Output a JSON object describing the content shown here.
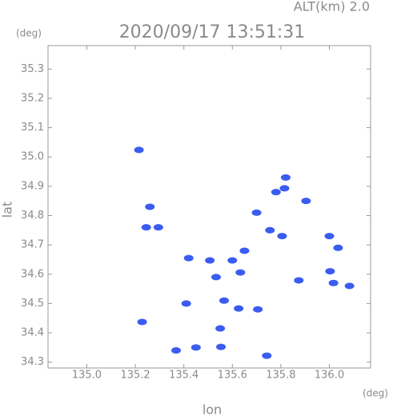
{
  "chart_data": {
    "type": "scatter",
    "title": "2020/09/17 13:51:31",
    "altitude_label": "ALT(km) 2.0",
    "xlabel": "lon",
    "ylabel": "lat",
    "x_unit": "(deg)",
    "y_unit": "(deg)",
    "color": "#3a5cf0",
    "x": [
      135.215,
      135.26,
      135.295,
      135.245,
      135.815,
      135.82,
      135.78,
      135.904,
      135.7,
      135.755,
      135.805,
      136.0,
      136.036,
      135.42,
      135.507,
      135.6,
      135.65,
      135.533,
      135.633,
      136.003,
      136.017,
      135.874,
      136.083,
      135.566,
      135.626,
      135.705,
      135.41,
      135.228,
      135.55,
      135.553,
      135.45,
      135.368,
      135.742
    ],
    "values": [
      35.024,
      34.83,
      34.76,
      34.76,
      34.893,
      34.93,
      34.88,
      34.85,
      34.81,
      34.75,
      34.73,
      34.73,
      34.69,
      34.655,
      34.647,
      34.647,
      34.68,
      34.59,
      34.606,
      34.61,
      34.57,
      34.579,
      34.56,
      34.51,
      34.483,
      34.48,
      34.5,
      34.437,
      34.415,
      34.352,
      34.35,
      34.34,
      34.322
    ],
    "xlim": [
      134.84,
      136.17
    ],
    "ylim": [
      34.28,
      35.38
    ],
    "xticks": [
      {
        "value": 135,
        "label": "135.0"
      },
      135.2,
      135.4,
      135.6,
      135.8,
      {
        "value": 136,
        "label": "136.0"
      }
    ],
    "yticks": [
      34.3,
      34.4,
      34.5,
      34.6,
      34.7,
      34.8,
      34.9,
      {
        "value": 35,
        "label": "35.0"
      },
      35.1,
      35.2,
      35.3
    ]
  }
}
